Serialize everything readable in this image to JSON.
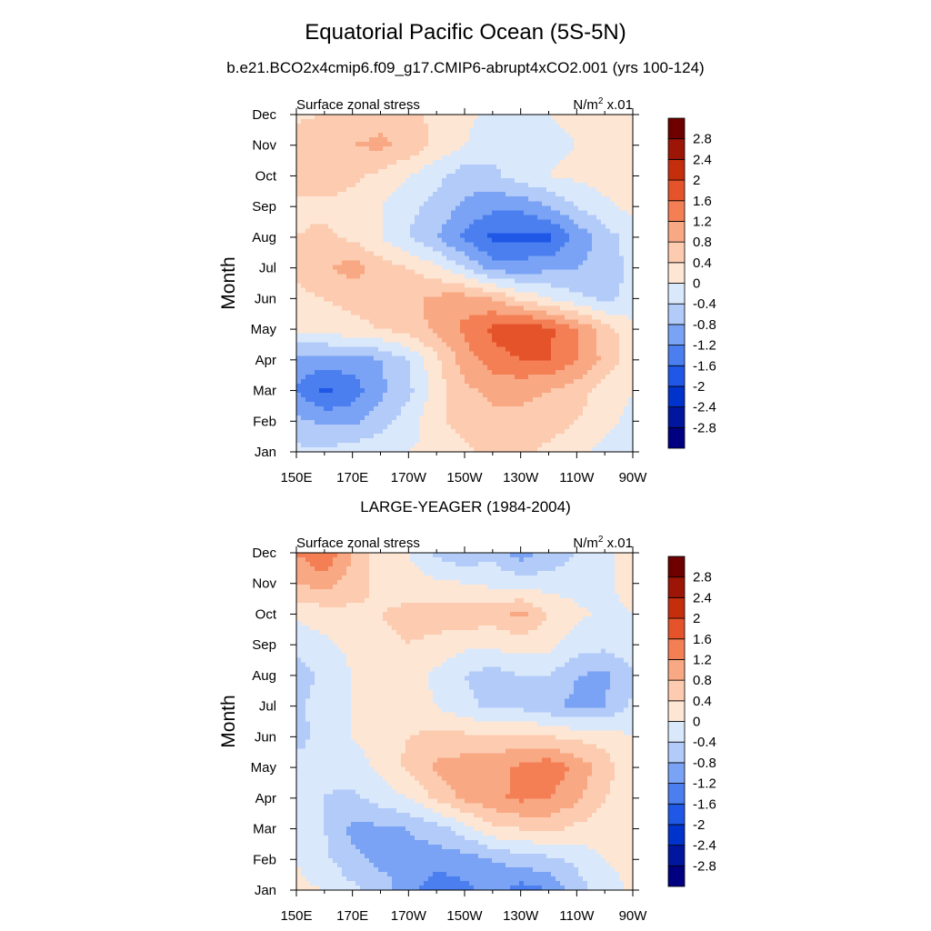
{
  "figure": {
    "title": "Equatorial Pacific Ocean (5S-5N)",
    "subtitle": "b.e21.BCO2x4cmip6.f09_g17.CMIP6-abrupt4xCO2.001 (yrs 100-124)",
    "panel2_title": "LARGE-YEAGER (1984-2004)"
  },
  "chart_data": [
    {
      "type": "heatmap",
      "title": "b.e21.BCO2x4cmip6.f09_g17.CMIP6-abrupt4xCO2.001 (yrs 100-124)",
      "left_label": "Surface zonal stress",
      "right_label_base": "N/m",
      "right_label_sup": "2",
      "right_label_tail": " x.01",
      "ylabel": "Month",
      "xlabel": "",
      "x_ticks": [
        "150E",
        "170E",
        "170W",
        "150W",
        "130W",
        "110W",
        "90W"
      ],
      "x_values": [
        150,
        170,
        190,
        210,
        230,
        250,
        270
      ],
      "y_ticks": [
        "Jan",
        "Feb",
        "Mar",
        "Apr",
        "May",
        "Jun",
        "Jul",
        "Aug",
        "Sep",
        "Oct",
        "Nov",
        "Dec"
      ],
      "colorbar_levels": [
        "-2.8",
        "-2.4",
        "-2",
        "-1.6",
        "-1.2",
        "-0.8",
        "-0.4",
        "0",
        "0.4",
        "0.8",
        "1.2",
        "1.6",
        "2",
        "2.4",
        "2.8"
      ],
      "colorbar_colors": [
        "#000080",
        "#00169e",
        "#0033cc",
        "#1f57e6",
        "#4b7ff0",
        "#7aa3f5",
        "#b3cbf8",
        "#dae8fb",
        "#fde6d4",
        "#fccbb0",
        "#f9a884",
        "#f47f55",
        "#e5532a",
        "#c42e0d",
        "#9c1506",
        "#6e0000"
      ],
      "grid_lon": [
        150,
        160,
        170,
        180,
        190,
        200,
        210,
        220,
        230,
        240,
        250,
        260,
        270
      ],
      "grid_z": [
        [
          -0.3,
          -0.3,
          -0.2,
          -0.1,
          0.0,
          0.1,
          0.3,
          0.5,
          0.5,
          0.3,
          0.1,
          -0.1,
          -0.2
        ],
        [
          -0.7,
          -0.9,
          -0.9,
          -0.6,
          -0.2,
          0.3,
          0.6,
          0.7,
          0.7,
          0.6,
          0.4,
          0.1,
          -0.1
        ],
        [
          -1.2,
          -1.7,
          -1.4,
          -0.9,
          -0.5,
          0.2,
          0.7,
          0.9,
          0.9,
          0.8,
          0.6,
          0.2,
          0.0
        ],
        [
          -1.0,
          -1.0,
          -1.0,
          -0.8,
          -0.4,
          0.3,
          1.0,
          1.4,
          1.6,
          1.6,
          1.2,
          0.7,
          0.2
        ],
        [
          0.1,
          0.2,
          0.3,
          0.4,
          0.6,
          0.9,
          1.3,
          1.7,
          2.0,
          1.7,
          1.2,
          0.6,
          0.1
        ],
        [
          0.3,
          0.4,
          0.5,
          0.6,
          0.7,
          0.9,
          1.0,
          0.8,
          0.3,
          0.0,
          -0.3,
          -0.5,
          -0.3
        ],
        [
          0.5,
          0.7,
          1.0,
          0.6,
          0.4,
          0.1,
          -0.4,
          -1.0,
          -1.0,
          -0.9,
          -0.8,
          -0.6,
          -0.3
        ],
        [
          0.4,
          0.5,
          0.3,
          0.0,
          -0.4,
          -0.8,
          -1.3,
          -1.7,
          -1.7,
          -1.7,
          -1.1,
          -0.6,
          -0.2
        ],
        [
          0.3,
          0.3,
          0.2,
          0.0,
          -0.3,
          -0.5,
          -0.9,
          -1.1,
          -1.1,
          -0.8,
          -0.4,
          -0.1,
          0.1
        ],
        [
          0.6,
          0.7,
          0.5,
          0.3,
          0.0,
          -0.3,
          -0.6,
          -0.5,
          -0.2,
          0.0,
          0.1,
          0.2,
          0.3
        ],
        [
          0.7,
          0.8,
          0.8,
          0.9,
          0.7,
          0.3,
          0.0,
          -0.2,
          -0.2,
          -0.1,
          0.0,
          0.1,
          0.2
        ],
        [
          0.3,
          0.4,
          0.5,
          0.6,
          0.5,
          0.3,
          0.1,
          -0.1,
          -0.1,
          0.0,
          0.1,
          0.1,
          0.0
        ]
      ]
    },
    {
      "type": "heatmap",
      "title": "LARGE-YEAGER (1984-2004)",
      "left_label": "Surface zonal stress",
      "right_label_base": "N/m",
      "right_label_sup": "2",
      "right_label_tail": " x.01",
      "ylabel": "Month",
      "xlabel": "",
      "x_ticks": [
        "150E",
        "170E",
        "170W",
        "150W",
        "130W",
        "110W",
        "90W"
      ],
      "x_values": [
        150,
        170,
        190,
        210,
        230,
        250,
        270
      ],
      "y_ticks": [
        "Jan",
        "Feb",
        "Mar",
        "Apr",
        "May",
        "Jun",
        "Jul",
        "Aug",
        "Sep",
        "Oct",
        "Nov",
        "Dec"
      ],
      "colorbar_levels": [
        "-2.8",
        "-2.4",
        "-2",
        "-1.6",
        "-1.2",
        "-0.8",
        "-0.4",
        "0",
        "0.4",
        "0.8",
        "1.2",
        "1.6",
        "2",
        "2.4",
        "2.8"
      ],
      "colorbar_colors": [
        "#000080",
        "#00169e",
        "#0033cc",
        "#1f57e6",
        "#4b7ff0",
        "#7aa3f5",
        "#b3cbf8",
        "#dae8fb",
        "#fde6d4",
        "#fccbb0",
        "#f9a884",
        "#f47f55",
        "#e5532a",
        "#c42e0d",
        "#9c1506",
        "#6e0000"
      ],
      "grid_lon": [
        150,
        160,
        170,
        180,
        190,
        200,
        210,
        220,
        230,
        240,
        250,
        260,
        270
      ],
      "grid_z": [
        [
          0.1,
          0.0,
          -0.3,
          -0.6,
          -1.0,
          -1.5,
          -1.3,
          -1.0,
          -1.4,
          -1.2,
          -0.6,
          -0.2,
          0.1
        ],
        [
          0.0,
          -0.3,
          -0.7,
          -0.9,
          -0.9,
          -1.0,
          -1.0,
          -0.8,
          -0.6,
          -0.5,
          -0.3,
          0.0,
          0.1
        ],
        [
          0.0,
          -0.4,
          -0.9,
          -0.9,
          -0.8,
          -0.6,
          -0.2,
          0.3,
          0.4,
          0.5,
          0.3,
          0.2,
          0.1
        ],
        [
          -0.1,
          -0.4,
          -0.5,
          -0.2,
          0.0,
          0.5,
          0.9,
          1.1,
          1.3,
          1.2,
          0.9,
          0.4,
          0.1
        ],
        [
          -0.3,
          -0.3,
          -0.2,
          0.1,
          0.5,
          0.9,
          1.0,
          1.0,
          1.3,
          1.5,
          1.1,
          0.6,
          0.1
        ],
        [
          -0.5,
          -0.3,
          0.0,
          0.2,
          0.4,
          0.5,
          0.5,
          0.5,
          0.5,
          0.4,
          0.3,
          0.2,
          0.0
        ],
        [
          -0.5,
          -0.2,
          0.0,
          0.1,
          0.2,
          0.0,
          -0.3,
          -0.5,
          -0.5,
          -0.7,
          -0.9,
          -0.8,
          -0.3
        ],
        [
          -0.6,
          -0.3,
          0.0,
          0.2,
          0.2,
          -0.1,
          -0.4,
          -0.6,
          -0.4,
          -0.4,
          -0.8,
          -0.9,
          -0.5
        ],
        [
          -0.3,
          -0.1,
          0.1,
          0.3,
          0.4,
          0.3,
          0.1,
          0.1,
          0.2,
          0.1,
          -0.2,
          -0.3,
          -0.1
        ],
        [
          0.1,
          0.2,
          0.3,
          0.4,
          0.5,
          0.6,
          0.7,
          0.6,
          0.9,
          0.4,
          0.1,
          -0.1,
          0.0
        ],
        [
          0.8,
          1.0,
          0.6,
          0.3,
          0.2,
          0.1,
          0.0,
          -0.1,
          -0.2,
          -0.2,
          -0.2,
          -0.1,
          0.2
        ],
        [
          1.2,
          1.6,
          0.8,
          0.2,
          0.0,
          -0.5,
          -0.7,
          -0.5,
          -1.0,
          -0.7,
          -0.4,
          -0.2,
          0.3
        ]
      ]
    }
  ]
}
